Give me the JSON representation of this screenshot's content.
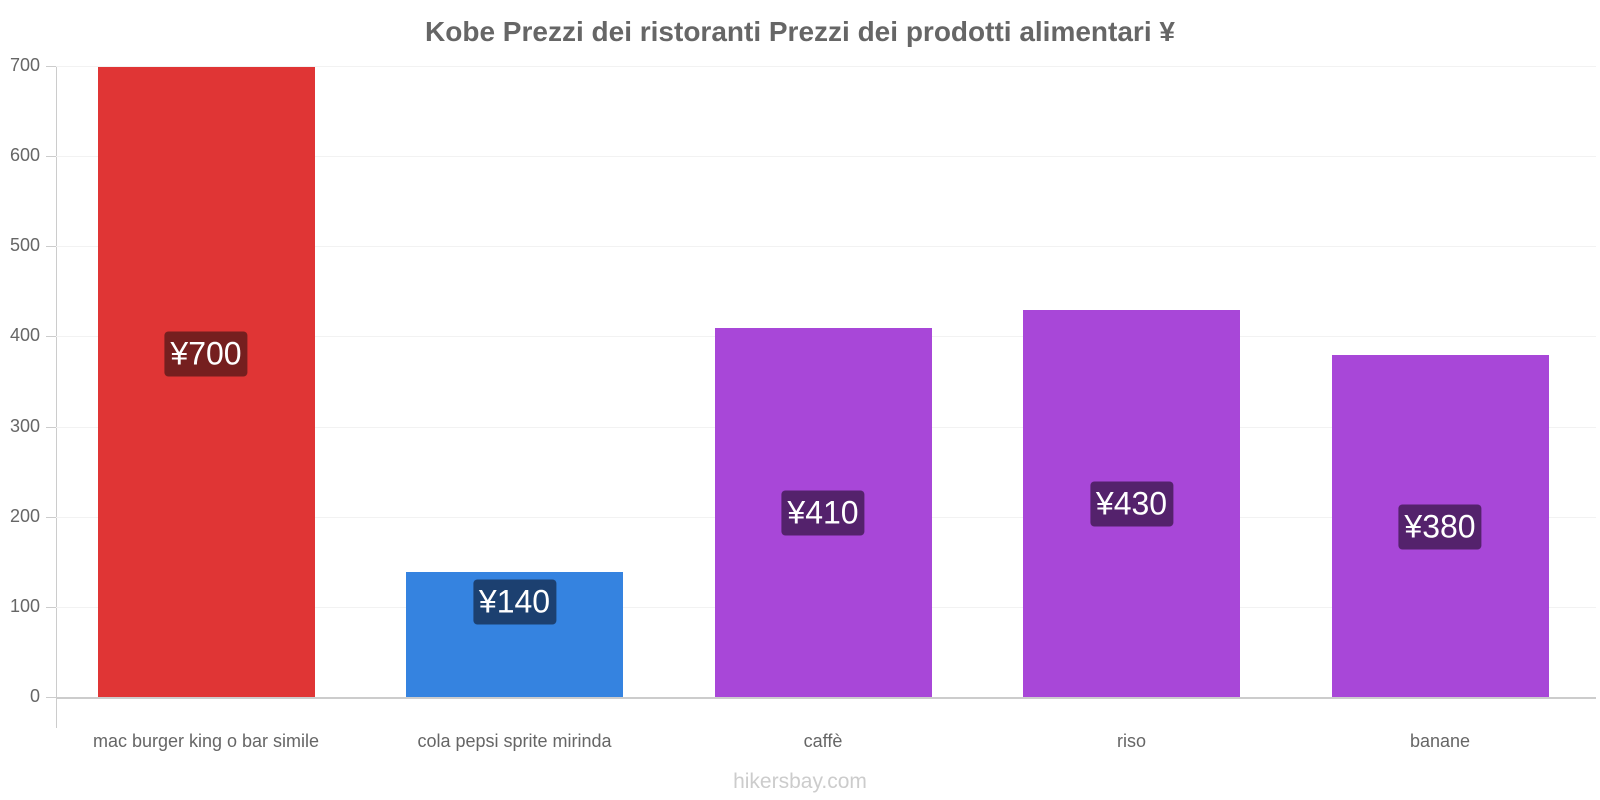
{
  "chart_data": {
    "type": "bar",
    "title": "Kobe Prezzi dei ristoranti Prezzi dei prodotti alimentari ¥",
    "categories": [
      "mac burger king o bar simile",
      "cola pepsi sprite mirinda",
      "caffè",
      "riso",
      "banane"
    ],
    "values": [
      700,
      140,
      410,
      430,
      380
    ],
    "value_labels": [
      "¥700",
      "¥140",
      "¥410",
      "¥430",
      "¥380"
    ],
    "bar_colors": [
      "#e03535",
      "#3583e0",
      "#a847d8",
      "#a847d8",
      "#a847d8"
    ],
    "label_colors": [
      "#751f1f",
      "#1c4070",
      "#54226c",
      "#54226c",
      "#54226c"
    ],
    "xlabel": "",
    "ylabel": "",
    "ylim": [
      0,
      700
    ],
    "yticks": [
      0,
      100,
      200,
      300,
      400,
      500,
      600,
      700
    ],
    "grid": true,
    "legend": null
  },
  "footer": {
    "watermark": "hikersbay.com"
  }
}
